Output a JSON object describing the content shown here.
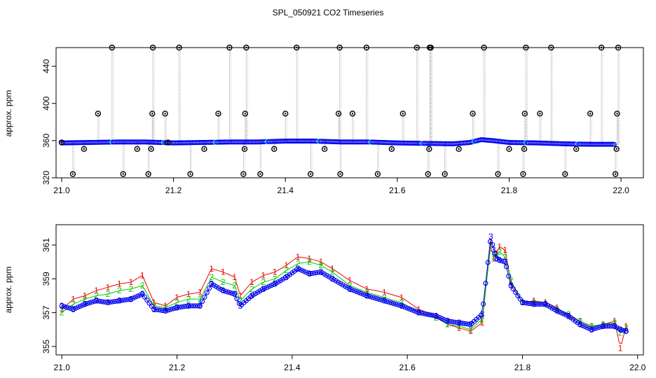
{
  "title": "SPL_050921  CO2 Timeseries",
  "colors": {
    "blue": "#0000ee",
    "cyan": "#00dddd",
    "red": "#ee0000",
    "green": "#00cc00",
    "black": "#000000",
    "spike": "#999999"
  },
  "chart_data": [
    {
      "type": "scatter",
      "ylabel": "approx. ppm",
      "xlim": [
        20.99,
        22.04
      ],
      "ylim": [
        320,
        460
      ],
      "x_ticks": [
        "21.0",
        "21.2",
        "21.4",
        "21.6",
        "21.8",
        "22.0"
      ],
      "y_ticks": [
        "320",
        "360",
        "400",
        "440"
      ],
      "baseline": {
        "x": [
          21.0,
          21.05,
          21.1,
          21.15,
          21.2,
          21.25,
          21.3,
          21.35,
          21.4,
          21.45,
          21.5,
          21.55,
          21.6,
          21.65,
          21.7,
          21.73,
          21.75,
          21.77,
          21.8,
          21.85,
          21.9,
          21.95,
          21.99
        ],
        "y": [
          357.5,
          358,
          358.5,
          358.5,
          357.5,
          358,
          358.5,
          358.5,
          359.5,
          359.5,
          358.5,
          358.5,
          357.5,
          357,
          356.5,
          358,
          361,
          360,
          358,
          357.5,
          356.5,
          356,
          356
        ]
      },
      "outliers": {
        "x": [
          21.0,
          21.02,
          21.04,
          21.065,
          21.09,
          21.11,
          21.135,
          21.155,
          21.16,
          21.162,
          21.163,
          21.185,
          21.19,
          21.21,
          21.23,
          21.255,
          21.28,
          21.3,
          21.325,
          21.327,
          21.328,
          21.33,
          21.355,
          21.38,
          21.4,
          21.42,
          21.445,
          21.47,
          21.495,
          21.497,
          21.498,
          21.52,
          21.545,
          21.565,
          21.59,
          21.61,
          21.635,
          21.655,
          21.657,
          21.658,
          21.66,
          21.685,
          21.71,
          21.735,
          21.755,
          21.78,
          21.8,
          21.825,
          21.827,
          21.828,
          21.83,
          21.855,
          21.875,
          21.9,
          21.92,
          21.945,
          21.965,
          21.99,
          21.992,
          21.993,
          21.995
        ],
        "y": [
          358,
          324,
          351,
          389,
          460,
          324,
          351,
          324,
          351,
          389,
          460,
          389,
          358,
          460,
          324,
          351,
          389,
          460,
          324,
          351,
          389,
          460,
          324,
          351,
          389,
          460,
          324,
          351,
          389,
          460,
          324,
          389,
          460,
          324,
          351,
          389,
          460,
          324,
          351,
          460,
          460,
          324,
          351,
          389,
          460,
          324,
          351,
          324,
          351,
          389,
          460,
          389,
          460,
          324,
          351,
          389,
          460,
          324,
          351,
          389,
          460
        ]
      }
    },
    {
      "type": "line",
      "ylabel": "approx. ppm",
      "xlim": [
        20.99,
        22.01
      ],
      "ylim": [
        354.5,
        362.2
      ],
      "x_ticks": [
        "21.0",
        "21.2",
        "21.4",
        "21.6",
        "21.8",
        "22.0"
      ],
      "y_ticks": [
        "355",
        "357",
        "359",
        "361"
      ],
      "series": [
        {
          "marker": "1",
          "color": "red",
          "x": [
            21.0,
            21.02,
            21.04,
            21.06,
            21.08,
            21.1,
            21.12,
            21.14,
            21.16,
            21.18,
            21.2,
            21.22,
            21.24,
            21.26,
            21.28,
            21.3,
            21.31,
            21.33,
            21.35,
            21.37,
            21.39,
            21.41,
            21.43,
            21.45,
            21.47,
            21.5,
            21.53,
            21.56,
            21.59,
            21.62,
            21.65,
            21.67,
            21.69,
            21.71,
            21.73,
            21.745,
            21.75,
            21.755,
            21.76,
            21.77,
            21.78,
            21.8,
            21.82,
            21.84,
            21.86,
            21.88,
            21.9,
            21.92,
            21.94,
            21.96,
            21.97,
            21.98
          ],
          "y": [
            357.2,
            357.8,
            358.0,
            358.3,
            358.5,
            358.7,
            358.8,
            359.2,
            357.6,
            357.4,
            357.9,
            358.1,
            358.2,
            359.6,
            359.4,
            359.1,
            358.0,
            358.8,
            359.2,
            359.4,
            359.8,
            360.3,
            360.2,
            360.0,
            359.6,
            358.9,
            358.4,
            358.2,
            357.9,
            357.2,
            356.8,
            356.3,
            356.1,
            355.9,
            356.4,
            361.2,
            360.2,
            360.5,
            360.9,
            360.7,
            358.8,
            357.6,
            357.7,
            357.6,
            357.3,
            356.8,
            356.5,
            356.2,
            356.3,
            356.5,
            354.9,
            356.2
          ]
        },
        {
          "marker": "2",
          "color": "green",
          "x": [
            21.0,
            21.02,
            21.04,
            21.06,
            21.08,
            21.1,
            21.12,
            21.14,
            21.16,
            21.18,
            21.2,
            21.22,
            21.24,
            21.26,
            21.28,
            21.3,
            21.31,
            21.33,
            21.35,
            21.37,
            21.39,
            21.41,
            21.43,
            21.45,
            21.47,
            21.5,
            21.53,
            21.56,
            21.59,
            21.62,
            21.65,
            21.67,
            21.69,
            21.71,
            21.73,
            21.745,
            21.75,
            21.755,
            21.76,
            21.77,
            21.78,
            21.8,
            21.82,
            21.84,
            21.86,
            21.88,
            21.9,
            21.92,
            21.94,
            21.96,
            21.97,
            21.98
          ],
          "y": [
            357.0,
            357.5,
            357.8,
            358.0,
            358.1,
            358.3,
            358.4,
            358.6,
            357.4,
            357.3,
            357.6,
            357.8,
            357.8,
            359.1,
            358.8,
            358.6,
            357.7,
            358.4,
            358.8,
            359.0,
            359.5,
            359.9,
            360.0,
            359.8,
            359.4,
            358.6,
            358.2,
            357.9,
            357.6,
            357.0,
            356.7,
            356.3,
            356.2,
            356.0,
            356.6,
            361.0,
            360.3,
            360.4,
            360.6,
            360.3,
            358.9,
            357.6,
            357.6,
            357.5,
            357.2,
            356.9,
            356.5,
            356.2,
            356.3,
            356.4,
            355.8,
            356.1
          ]
        },
        {
          "marker": "3",
          "color": "blue",
          "x": [
            21.0,
            21.02,
            21.04,
            21.06,
            21.08,
            21.1,
            21.12,
            21.14,
            21.16,
            21.18,
            21.2,
            21.22,
            21.24,
            21.26,
            21.28,
            21.3,
            21.31,
            21.33,
            21.35,
            21.37,
            21.39,
            21.41,
            21.43,
            21.45,
            21.47,
            21.5,
            21.53,
            21.56,
            21.59,
            21.62,
            21.65,
            21.67,
            21.69,
            21.71,
            21.73,
            21.745,
            21.75,
            21.755,
            21.76,
            21.77,
            21.78,
            21.8,
            21.82,
            21.84,
            21.86,
            21.88,
            21.9,
            21.92,
            21.94,
            21.96,
            21.97,
            21.98
          ],
          "y": [
            357.4,
            357.2,
            357.5,
            357.7,
            357.6,
            357.7,
            357.8,
            358.1,
            357.2,
            357.1,
            357.3,
            357.4,
            357.4,
            358.7,
            358.3,
            358.1,
            357.4,
            358.0,
            358.4,
            358.7,
            359.1,
            359.6,
            359.3,
            359.4,
            359.0,
            358.4,
            358.0,
            357.7,
            357.4,
            357.0,
            356.8,
            356.5,
            356.4,
            356.3,
            356.9,
            361.5,
            360.7,
            360.2,
            360.1,
            360.0,
            358.6,
            357.6,
            357.5,
            357.5,
            357.1,
            356.8,
            356.3,
            356.0,
            356.2,
            356.2,
            356.0,
            355.9
          ]
        }
      ]
    }
  ]
}
